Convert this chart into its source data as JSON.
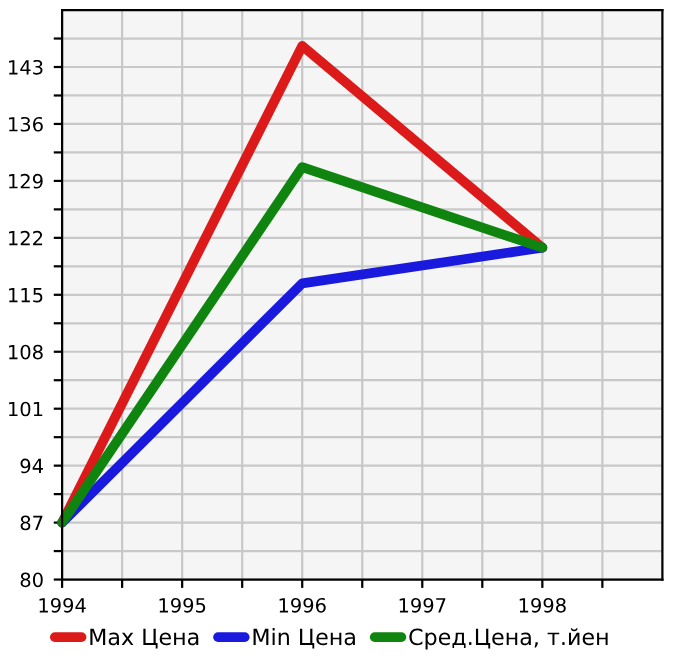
{
  "chart_data": {
    "type": "line",
    "x": [
      1994,
      1996,
      1998
    ],
    "series": [
      {
        "name": "Max Цена",
        "color": "#dd1a1a",
        "values": [
          87,
          145.6,
          120.8
        ]
      },
      {
        "name": "Min Цена",
        "color": "#1a1adf",
        "values": [
          87,
          116.4,
          120.8
        ]
      },
      {
        "name": "Сред.Цена, т.йен",
        "color": "#0f850f",
        "values": [
          87,
          130.7,
          120.8
        ]
      }
    ],
    "xlim": [
      1994,
      1999
    ],
    "xticks": [
      1994,
      {
        "value": 1994.5,
        "label": null
      },
      1995,
      {
        "value": 1995.5,
        "label": null
      },
      1996,
      {
        "value": 1996.5,
        "label": null
      },
      1997,
      {
        "value": 1997.5,
        "label": null
      },
      1998,
      {
        "value": 1998.5,
        "label": null
      }
    ],
    "ylim": [
      80,
      150
    ],
    "yticks": [
      80,
      {
        "value": 83.5,
        "label": null
      },
      87,
      {
        "value": 90.5,
        "label": null
      },
      94,
      {
        "value": 97.5,
        "label": null
      },
      101,
      {
        "value": 104.5,
        "label": null
      },
      108,
      {
        "value": 111.5,
        "label": null
      },
      115,
      {
        "value": 118.5,
        "label": null
      },
      122,
      {
        "value": 125.5,
        "label": null
      },
      129,
      {
        "value": 132.5,
        "label": null
      },
      136,
      {
        "value": 139.5,
        "label": null
      },
      143,
      {
        "value": 146.5,
        "label": null
      }
    ],
    "grid": true,
    "legend": "bottom",
    "marker": "none",
    "line_style": "solid"
  }
}
